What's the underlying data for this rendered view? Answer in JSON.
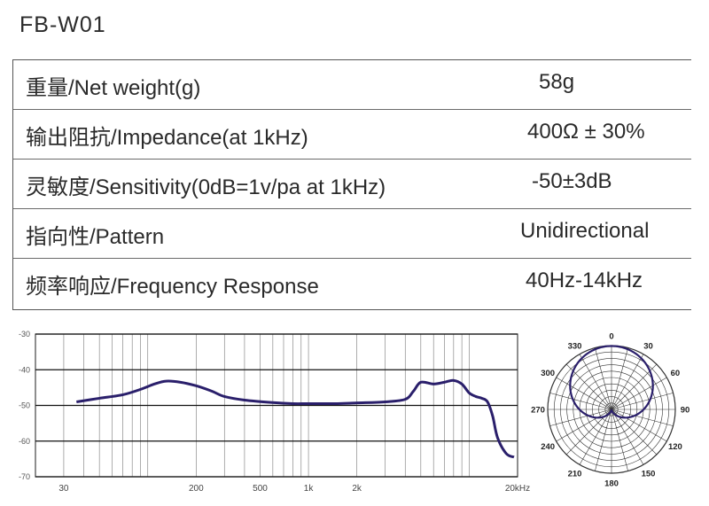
{
  "model": "FB-W01",
  "specs": [
    {
      "label": "重量/Net weight(g)",
      "value": "58g"
    },
    {
      "label": "输出阻抗/Impedance(at 1kHz)",
      "value": "400Ω ± 30%"
    },
    {
      "label": "灵敏度/Sensitivity(0dB=1v/pa at 1kHz)",
      "value": "-50±3dB"
    },
    {
      "label": "指向性/Pattern",
      "value": "Unidirectional"
    },
    {
      "label": "频率响应/Frequency Response",
      "value": "40Hz-14kHz"
    }
  ],
  "chart_data": [
    {
      "type": "line",
      "x_scale": "log",
      "xlim": [
        20,
        20000
      ],
      "ylim": [
        -70,
        -30
      ],
      "y_ticks": [
        -30,
        -40,
        -50,
        -60,
        -70
      ],
      "x_tick_labels": [
        "30",
        "200",
        "500",
        "1k",
        "2k",
        "20kHz"
      ],
      "x_tick_values": [
        30,
        200,
        500,
        1000,
        2000,
        20000
      ],
      "grid": true,
      "line_color": "#2a1f6b",
      "series": [
        {
          "x": [
            36,
            50,
            70,
            90,
            110,
            130,
            160,
            200,
            250,
            300,
            400,
            600,
            800,
            1000,
            1500,
            2000,
            3000,
            4000,
            4500,
            5000,
            6000,
            7000,
            8000,
            9000,
            10000,
            11000,
            12000,
            13000,
            14000,
            15000,
            17000,
            19000
          ],
          "y": [
            -49,
            -48,
            -47,
            -45.5,
            -44,
            -43.2,
            -43.5,
            -44.5,
            -46,
            -47.5,
            -48.5,
            -49.2,
            -49.5,
            -49.5,
            -49.5,
            -49.3,
            -49,
            -48.3,
            -46,
            -43.5,
            -44,
            -43.5,
            -43,
            -44,
            -46.5,
            -47.5,
            -48,
            -49,
            -53,
            -59,
            -63.5,
            -64.5
          ]
        }
      ]
    },
    {
      "type": "polar",
      "angle_labels": [
        "0",
        "30",
        "60",
        "90",
        "120",
        "150",
        "180",
        "210",
        "240",
        "270",
        "300",
        "330"
      ],
      "pattern": "cardioid",
      "line_color": "#2a1f6b"
    }
  ]
}
